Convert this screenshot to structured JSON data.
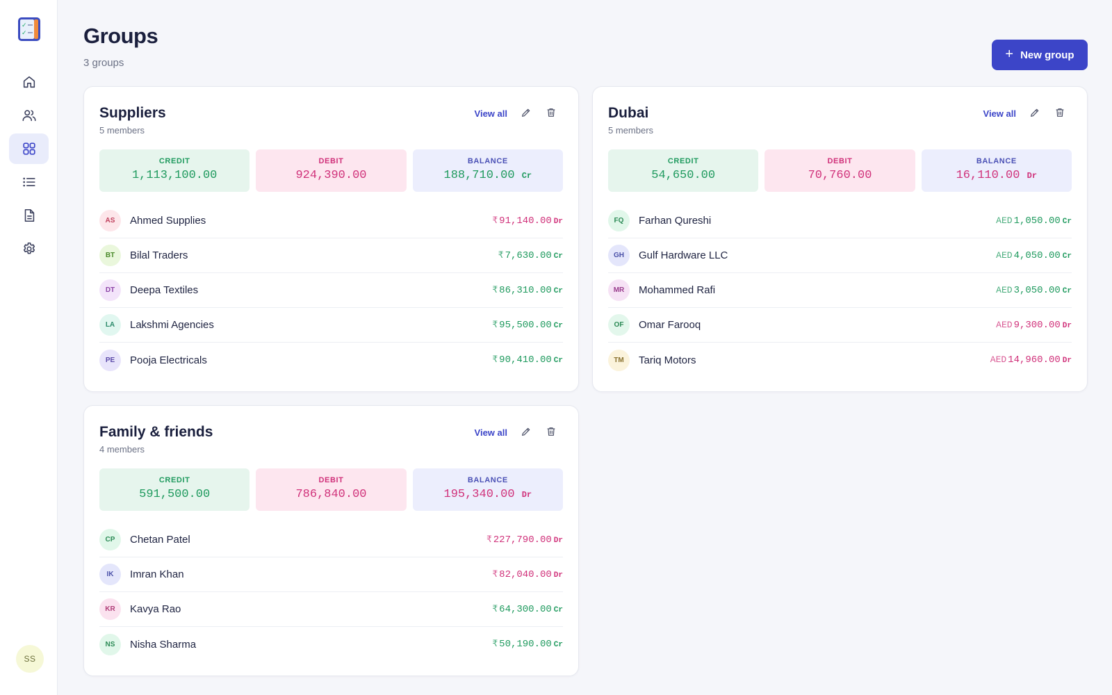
{
  "header": {
    "title": "Groups",
    "subtitle": "3 groups",
    "new_button_label": "New group"
  },
  "user": {
    "initials": "SS"
  },
  "sidebar": {
    "items": [
      {
        "icon": "home-icon",
        "active": false
      },
      {
        "icon": "users-icon",
        "active": false
      },
      {
        "icon": "grid-icon",
        "active": true
      },
      {
        "icon": "list-icon",
        "active": false
      },
      {
        "icon": "document-icon",
        "active": false
      },
      {
        "icon": "gear-icon",
        "active": false
      }
    ]
  },
  "labels": {
    "view_all": "View all",
    "credit": "CREDIT",
    "debit": "DEBIT",
    "balance": "BALANCE"
  },
  "colors": {
    "accent": "#3c45c8",
    "credit": "#1f9a5e",
    "debit": "#d0317a"
  },
  "groups": [
    {
      "name": "Suppliers",
      "members_count": "5 members",
      "credit": "1,113,100.00",
      "debit": "924,390.00",
      "balance": "188,710.00",
      "balance_suffix": "Cr",
      "members": [
        {
          "initials": "AS",
          "name": "Ahmed Supplies",
          "currency": "₹",
          "amount": "91,140.00",
          "suffix": "Dr",
          "avatar_bg": "#fde6ea",
          "avatar_fg": "#c0415e"
        },
        {
          "initials": "BT",
          "name": "Bilal Traders",
          "currency": "₹",
          "amount": "7,630.00",
          "suffix": "Cr",
          "avatar_bg": "#eaf7dc",
          "avatar_fg": "#4b8a2b"
        },
        {
          "initials": "DT",
          "name": "Deepa Textiles",
          "currency": "₹",
          "amount": "86,310.00",
          "suffix": "Cr",
          "avatar_bg": "#f3e4fa",
          "avatar_fg": "#8d45a8"
        },
        {
          "initials": "LA",
          "name": "Lakshmi Agencies",
          "currency": "₹",
          "amount": "95,500.00",
          "suffix": "Cr",
          "avatar_bg": "#e1f7f0",
          "avatar_fg": "#2b8a6a"
        },
        {
          "initials": "PE",
          "name": "Pooja Electricals",
          "currency": "₹",
          "amount": "90,410.00",
          "suffix": "Cr",
          "avatar_bg": "#e8e4fb",
          "avatar_fg": "#5a48a8"
        }
      ]
    },
    {
      "name": "Dubai",
      "members_count": "5 members",
      "credit": "54,650.00",
      "debit": "70,760.00",
      "balance": "16,110.00",
      "balance_suffix": "Dr",
      "members": [
        {
          "initials": "FQ",
          "name": "Farhan Qureshi",
          "currency": "AED",
          "amount": "1,050.00",
          "suffix": "Cr",
          "avatar_bg": "#e1f7ea",
          "avatar_fg": "#2b8a55"
        },
        {
          "initials": "GH",
          "name": "Gulf Hardware LLC",
          "currency": "AED",
          "amount": "4,050.00",
          "suffix": "Cr",
          "avatar_bg": "#e4e6fb",
          "avatar_fg": "#4a50a8"
        },
        {
          "initials": "MR",
          "name": "Mohammed Rafi",
          "currency": "AED",
          "amount": "3,050.00",
          "suffix": "Cr",
          "avatar_bg": "#f6e2f5",
          "avatar_fg": "#9a3d8e"
        },
        {
          "initials": "OF",
          "name": "Omar Farooq",
          "currency": "AED",
          "amount": "9,300.00",
          "suffix": "Dr",
          "avatar_bg": "#e3f7ec",
          "avatar_fg": "#2b8a55"
        },
        {
          "initials": "TM",
          "name": "Tariq Motors",
          "currency": "AED",
          "amount": "14,960.00",
          "suffix": "Dr",
          "avatar_bg": "#fbf3dc",
          "avatar_fg": "#8a7230"
        }
      ]
    },
    {
      "name": "Family & friends",
      "members_count": "4 members",
      "credit": "591,500.00",
      "debit": "786,840.00",
      "balance": "195,340.00",
      "balance_suffix": "Dr",
      "members": [
        {
          "initials": "CP",
          "name": "Chetan Patel",
          "currency": "₹",
          "amount": "227,790.00",
          "suffix": "Dr",
          "avatar_bg": "#e1f7ea",
          "avatar_fg": "#2b8a55"
        },
        {
          "initials": "IK",
          "name": "Imran Khan",
          "currency": "₹",
          "amount": "82,040.00",
          "suffix": "Dr",
          "avatar_bg": "#e4e6fb",
          "avatar_fg": "#4a50a8"
        },
        {
          "initials": "KR",
          "name": "Kavya Rao",
          "currency": "₹",
          "amount": "64,300.00",
          "suffix": "Cr",
          "avatar_bg": "#fbe2ef",
          "avatar_fg": "#b03d78"
        },
        {
          "initials": "NS",
          "name": "Nisha Sharma",
          "currency": "₹",
          "amount": "50,190.00",
          "suffix": "Cr",
          "avatar_bg": "#e1f7ea",
          "avatar_fg": "#2b8a55"
        }
      ]
    }
  ]
}
